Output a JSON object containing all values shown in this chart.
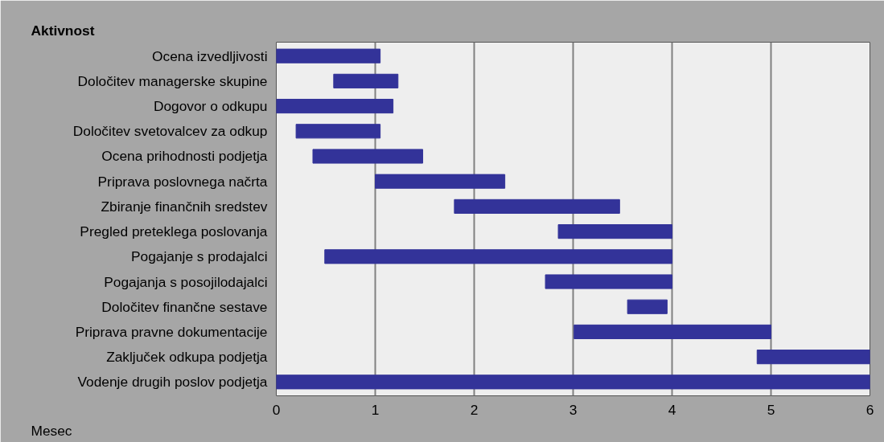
{
  "chart_data": {
    "type": "bar",
    "orientation": "horizontal",
    "ylabel": "Aktivnost",
    "xlabel": "Mesec",
    "categories": [
      "Ocena izvedljivosti",
      "Določitev managerske skupine",
      "Dogovor o odkupu",
      "Določitev svetovalcev za odkup",
      "Ocena prihodnosti podjetja",
      "Priprava poslovnega načrta",
      "Zbiranje finančnih sredstev",
      "Pregled preteklega poslovanja",
      "Pogajanje s prodajalci",
      "Pogajanja s posojilodajalci",
      "Določitev finančne sestave",
      "Priprava pravne dokumentacije",
      "Zaključek odkupa podjetja",
      "Vodenje drugih poslov podjetja"
    ],
    "base": [
      0,
      0.58,
      0,
      0.2,
      0.37,
      1.0,
      1.8,
      2.85,
      0.49,
      2.72,
      3.55,
      3.01,
      4.86,
      0
    ],
    "values": [
      1.05,
      0.65,
      1.18,
      0.85,
      1.11,
      1.31,
      1.67,
      1.15,
      3.51,
      1.28,
      0.4,
      1.99,
      1.14,
      6
    ],
    "color": "#333399",
    "xlim": [
      0,
      6
    ],
    "xticks": [
      0,
      1,
      2,
      3,
      4,
      5,
      6
    ],
    "grid": "x"
  }
}
